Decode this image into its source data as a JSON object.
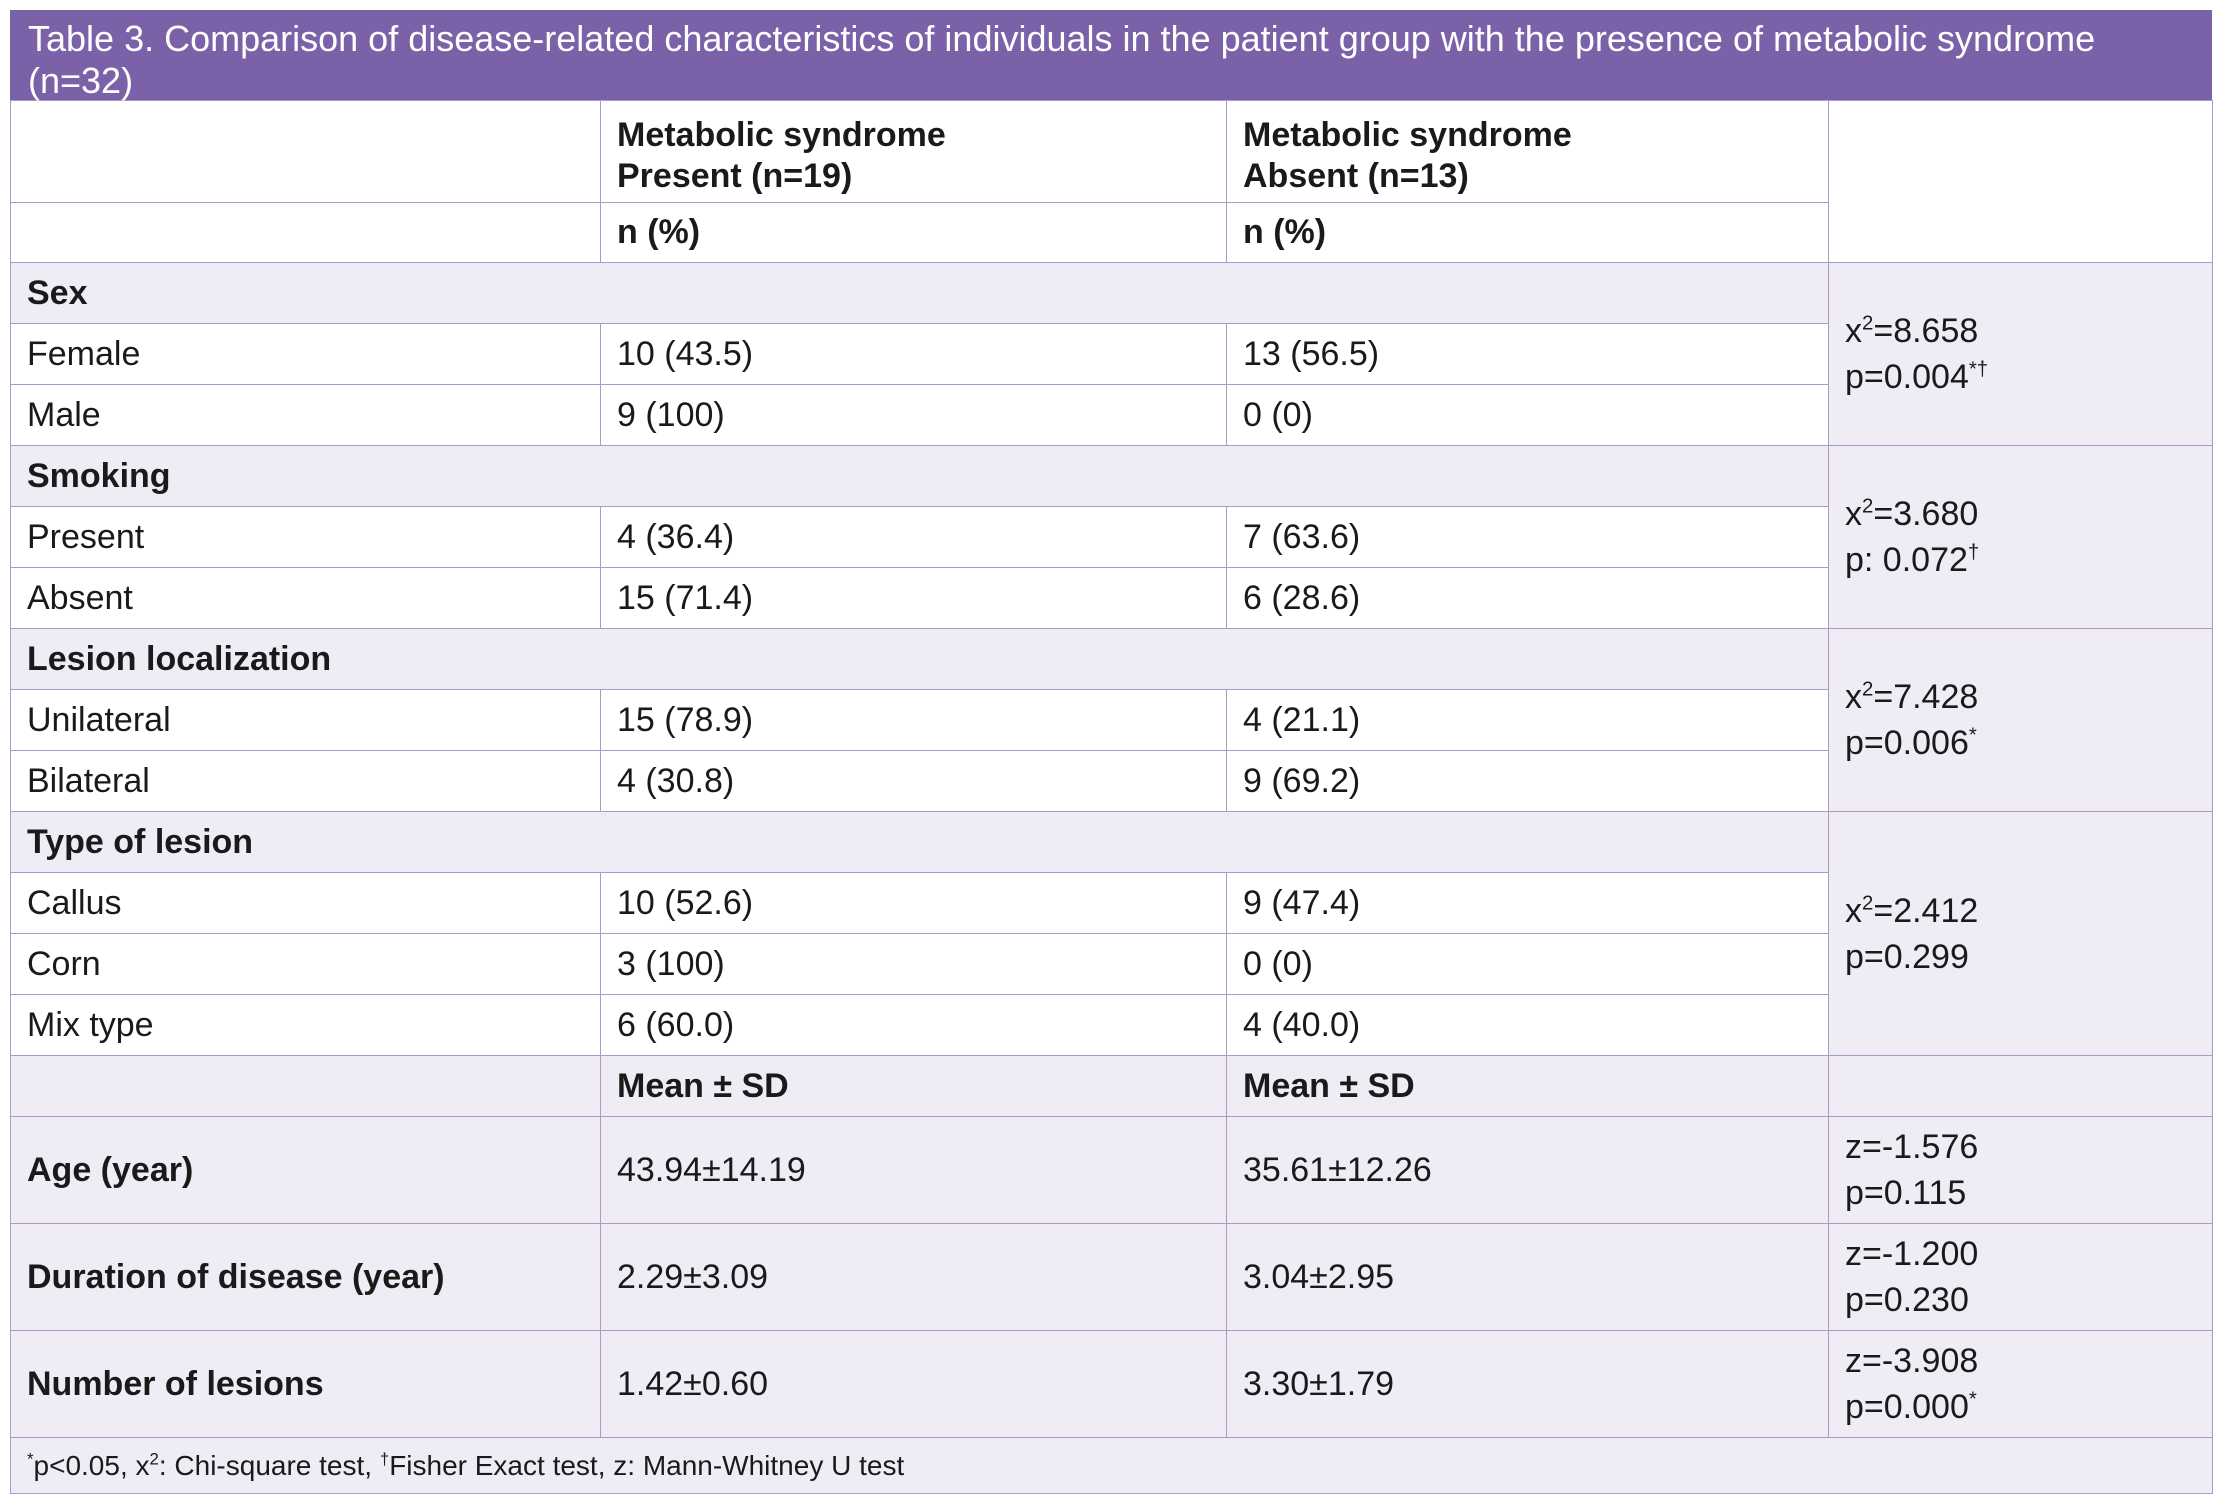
{
  "title": "Table 3. Comparison of disease-related characteristics of individuals in the patient group with the presence of metabolic syndrome (n=32)",
  "header": {
    "col1": [
      "Metabolic syndrome",
      "Present (n=19)"
    ],
    "col2": [
      "Metabolic syndrome",
      "Absent (n=13)"
    ],
    "unit1": "n (%)",
    "unit2": "n (%)"
  },
  "groups": [
    {
      "label": "Sex",
      "stat_pre": "x",
      "stat_sup": "2",
      "stat_val": "=8.658",
      "p": "p=0.004",
      "p_sup": "*†",
      "rows": [
        {
          "label": "Female",
          "present": "10 (43.5)",
          "absent": "13 (56.5)"
        },
        {
          "label": "Male",
          "present": "9 (100)",
          "absent": "0 (0)"
        }
      ]
    },
    {
      "label": "Smoking",
      "stat_pre": "x",
      "stat_sup": "2",
      "stat_val": "=3.680",
      "p": "p: 0.072",
      "p_sup": "†",
      "rows": [
        {
          "label": "Present",
          "present": "4 (36.4)",
          "absent": "7 (63.6)"
        },
        {
          "label": "Absent",
          "present": "15 (71.4)",
          "absent": "6 (28.6)"
        }
      ]
    },
    {
      "label": "Lesion localization",
      "stat_pre": "x",
      "stat_sup": "2",
      "stat_val": "=7.428",
      "p": "p=0.006",
      "p_sup": "*",
      "rows": [
        {
          "label": "Unilateral",
          "present": "15 (78.9)",
          "absent": "4 (21.1)"
        },
        {
          "label": "Bilateral",
          "present": "4 (30.8)",
          "absent": "9 (69.2)"
        }
      ]
    },
    {
      "label": "Type of lesion",
      "stat_pre": "x",
      "stat_sup": "2",
      "stat_val": "=2.412",
      "p": "p=0.299",
      "p_sup": "",
      "rows": [
        {
          "label": "Callus",
          "present": "10 (52.6)",
          "absent": "9 (47.4)"
        },
        {
          "label": "Corn",
          "present": "3 (100)",
          "absent": "0 (0)"
        },
        {
          "label": "Mix type",
          "present": "6 (60.0)",
          "absent": "4 (40.0)"
        }
      ]
    }
  ],
  "mean_header": {
    "col1": "Mean ± SD",
    "col2": "Mean ± SD"
  },
  "continuous": [
    {
      "label": "Age (year)",
      "present": "43.94±14.19",
      "absent": "35.61±12.26",
      "z": "z=-1.576",
      "p": "p=0.115",
      "p_sup": ""
    },
    {
      "label": "Duration of disease (year)",
      "present": "2.29±3.09",
      "absent": "3.04±2.95",
      "z": "z=-1.200",
      "p": "p=0.230",
      "p_sup": ""
    },
    {
      "label": "Number of lesions",
      "present": "1.42±0.60",
      "absent": "3.30±1.79",
      "z": "z=-3.908",
      "p": "p=0.000",
      "p_sup": "*"
    }
  ],
  "footnote": {
    "sup1": "*",
    "t1": "p<0.05, x",
    "sup2": "2",
    "t2": ": Chi-square test, ",
    "sup3": "†",
    "t3": "Fisher Exact test, z: Mann-Whitney U test"
  }
}
